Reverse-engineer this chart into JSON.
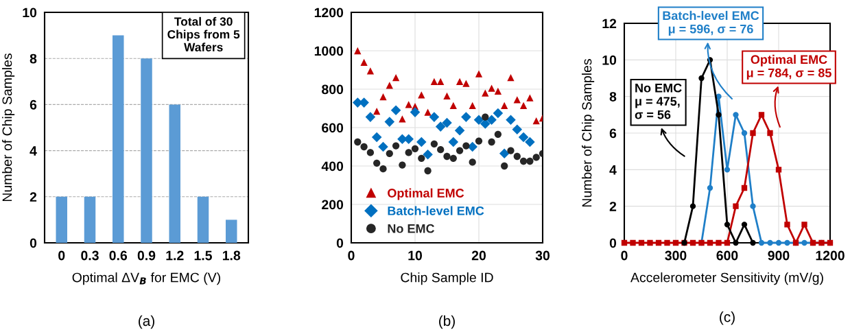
{
  "chart_data": [
    {
      "type": "bar",
      "title": "(a)",
      "xlabel": "Optimal ΔV$_{B}$ for EMC (V)",
      "ylabel": "Number of Chip Samples",
      "categories": [
        "0",
        "0.3",
        "0.6",
        "0.9",
        "1.2",
        "1.5",
        "1.8"
      ],
      "values": [
        2,
        2,
        9,
        8,
        6,
        2,
        1
      ],
      "color": "#5b9bd5",
      "ylim": [
        0,
        10
      ],
      "yticks": [
        0,
        2,
        4,
        6,
        8,
        10
      ],
      "grid": "y",
      "line_style": "dashed",
      "annotations": [
        "Total of 30\nChips from 5\nWafers"
      ]
    },
    {
      "type": "scatter",
      "title": "(b)",
      "xlabel": "Chip Sample ID",
      "x": [
        1,
        2,
        3,
        4,
        5,
        6,
        7,
        8,
        9,
        10,
        11,
        12,
        13,
        14,
        15,
        16,
        17,
        18,
        19,
        20,
        21,
        22,
        23,
        24,
        25,
        26,
        27,
        28,
        29,
        30
      ],
      "xlim": [
        0,
        30
      ],
      "xticks": [
        0,
        10,
        20,
        30
      ],
      "ylim": [
        0,
        1200
      ],
      "yticks": [
        0,
        200,
        400,
        600,
        800,
        1000,
        1200
      ],
      "grid": true,
      "legend": "bottom left",
      "series": [
        {
          "name": "Optimal EMC",
          "color": "#c00000",
          "marker": "triangle",
          "values": [
            1000,
            940,
            895,
            685,
            760,
            820,
            860,
            645,
            720,
            710,
            770,
            680,
            840,
            840,
            765,
            715,
            840,
            830,
            715,
            880,
            780,
            805,
            790,
            715,
            860,
            745,
            715,
            755,
            635,
            650
          ]
        },
        {
          "name": "Batch-level EMC",
          "color": "#0070c0",
          "marker": "diamond",
          "values": [
            730,
            730,
            655,
            550,
            500,
            630,
            690,
            540,
            540,
            680,
            525,
            460,
            655,
            605,
            625,
            525,
            585,
            655,
            500,
            640,
            620,
            640,
            675,
            465,
            640,
            590,
            550,
            525,
            null,
            null
          ]
        },
        {
          "name": "No EMC",
          "color": "#262626",
          "marker": "circle",
          "values": [
            525,
            500,
            470,
            415,
            385,
            465,
            505,
            405,
            470,
            490,
            440,
            375,
            515,
            485,
            450,
            440,
            480,
            505,
            420,
            530,
            655,
            525,
            565,
            400,
            480,
            450,
            425,
            425,
            445,
            465
          ]
        }
      ]
    },
    {
      "type": "line",
      "title": "(c)",
      "xlabel": "Accelerometer Sensitivity (mV/g)",
      "ylabel": "Number of Chip Samples",
      "x": [
        0,
        50,
        100,
        150,
        200,
        250,
        300,
        350,
        400,
        450,
        500,
        550,
        600,
        650,
        700,
        750,
        800,
        850,
        900,
        950,
        1000,
        1050,
        1100,
        1150,
        1200
      ],
      "xlim": [
        0,
        1200
      ],
      "xticks": [
        0,
        300,
        600,
        900,
        1200
      ],
      "ylim": [
        0,
        12
      ],
      "yticks": [
        0,
        2,
        4,
        6,
        8,
        10,
        12
      ],
      "grid": true,
      "line_style": "solid",
      "series": [
        {
          "color": "#000000",
          "marker": "circle",
          "values": [
            null,
            null,
            null,
            null,
            null,
            null,
            null,
            0,
            2,
            9,
            10,
            7,
            1,
            0,
            1,
            0,
            null,
            null,
            null,
            null,
            null,
            null,
            null,
            null,
            null
          ]
        },
        {
          "color": "#1f7fc8",
          "marker": "circle",
          "values": [
            null,
            null,
            null,
            null,
            null,
            null,
            null,
            null,
            null,
            0,
            3,
            8,
            4,
            7,
            6,
            2,
            0,
            0,
            0,
            0,
            0,
            0,
            0,
            0,
            0
          ]
        },
        {
          "color": "#c00000",
          "marker": "square",
          "values": [
            0,
            0,
            0,
            0,
            0,
            0,
            0,
            0,
            0,
            0,
            0,
            0,
            0,
            2,
            3,
            6,
            7,
            6,
            4,
            1,
            0,
            1,
            0,
            0,
            0
          ]
        }
      ],
      "annotations": [
        "No EMC\nμ = 475,\nσ = 56",
        "Batch-level EMC\nμ = 596, σ = 76",
        "Optimal EMC\nμ = 784, σ = 85"
      ]
    }
  ]
}
